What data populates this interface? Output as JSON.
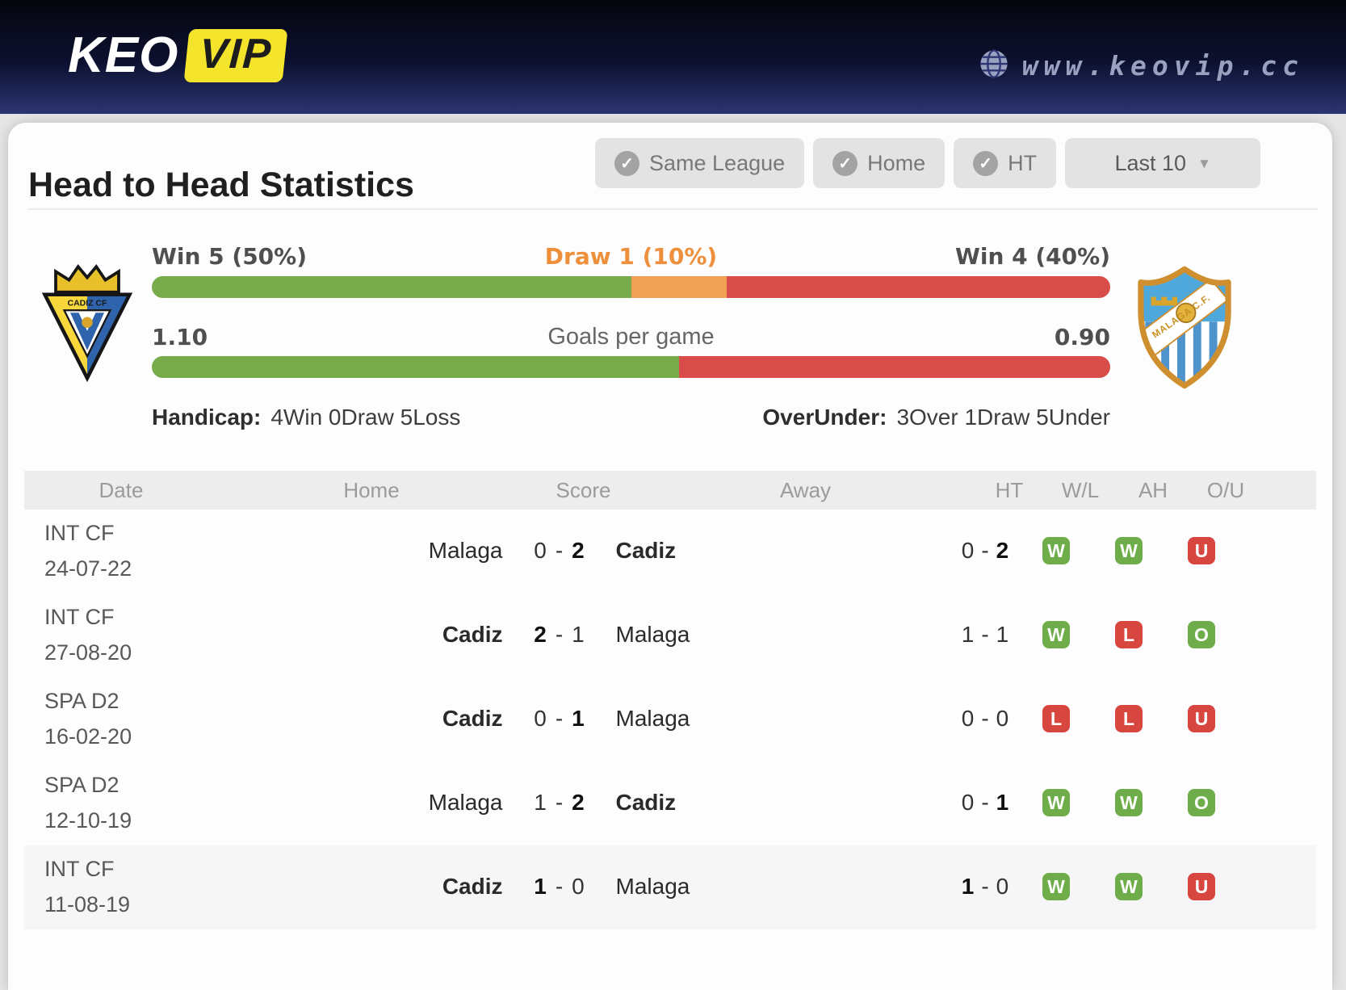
{
  "header": {
    "logo_keo": "KEO",
    "logo_vip": "VIP",
    "website": "www.keovip.cc"
  },
  "page": {
    "title": "Head to Head Statistics",
    "filters": [
      {
        "label": "Same League",
        "checked": true
      },
      {
        "label": "Home",
        "checked": true
      },
      {
        "label": "HT",
        "checked": true
      }
    ],
    "range_selector": {
      "label": "Last 10"
    },
    "check_glyph": "✓",
    "caret_glyph": "▼"
  },
  "teams": {
    "reference_team": "Cadiz",
    "opponent_team": "Malaga"
  },
  "stats": {
    "win_bar": {
      "left_label": "Win 5 (50%)",
      "center_label": "Draw 1 (10%)",
      "right_label": "Win 4 (40%)",
      "segments": [
        {
          "name": "cadiz-win",
          "value": 50,
          "color": "#78ac4b"
        },
        {
          "name": "draw",
          "value": 10,
          "color": "#f0a156"
        },
        {
          "name": "malaga-win",
          "value": 40,
          "color": "#d84d4a"
        }
      ]
    },
    "goals_bar": {
      "left_label": "1.10",
      "center_label": "Goals per game",
      "right_label": "0.90",
      "segments": [
        {
          "name": "cadiz-goals",
          "value": 55,
          "color": "#78ac4b"
        },
        {
          "name": "malaga-goals",
          "value": 45,
          "color": "#d84d4a"
        }
      ]
    },
    "handicap": {
      "label": "Handicap:",
      "value": "4Win 0Draw 5Loss"
    },
    "over_under": {
      "label": "OverUnder:",
      "value": "3Over 1Draw 5Under"
    }
  },
  "table": {
    "headers": [
      "Date",
      "Home",
      "Score",
      "Away",
      "HT",
      "W/L",
      "AH",
      "O/U"
    ],
    "rows": [
      {
        "league": "INT CF",
        "date": "24-07-22",
        "home": {
          "name": "Malaga",
          "bold": false
        },
        "away": {
          "name": "Cadiz",
          "bold": true
        },
        "score": {
          "home": "0",
          "away": "2",
          "home_bold": false,
          "away_bold": true
        },
        "ht": {
          "home": "0",
          "away": "2",
          "home_bold": false,
          "away_bold": true
        },
        "wl": {
          "text": "W",
          "color": "green"
        },
        "ah": {
          "text": "W",
          "color": "green"
        },
        "ou": {
          "text": "U",
          "color": "red"
        }
      },
      {
        "league": "INT CF",
        "date": "27-08-20",
        "home": {
          "name": "Cadiz",
          "bold": true
        },
        "away": {
          "name": "Malaga",
          "bold": false
        },
        "score": {
          "home": "2",
          "away": "1",
          "home_bold": true,
          "away_bold": false
        },
        "ht": {
          "home": "1",
          "away": "1",
          "home_bold": false,
          "away_bold": false
        },
        "wl": {
          "text": "W",
          "color": "green"
        },
        "ah": {
          "text": "L",
          "color": "red"
        },
        "ou": {
          "text": "O",
          "color": "green"
        }
      },
      {
        "league": "SPA D2",
        "date": "16-02-20",
        "home": {
          "name": "Cadiz",
          "bold": true
        },
        "away": {
          "name": "Malaga",
          "bold": false
        },
        "score": {
          "home": "0",
          "away": "1",
          "home_bold": false,
          "away_bold": true
        },
        "ht": {
          "home": "0",
          "away": "0",
          "home_bold": false,
          "away_bold": false
        },
        "wl": {
          "text": "L",
          "color": "red"
        },
        "ah": {
          "text": "L",
          "color": "red"
        },
        "ou": {
          "text": "U",
          "color": "red"
        }
      },
      {
        "league": "SPA D2",
        "date": "12-10-19",
        "home": {
          "name": "Malaga",
          "bold": false
        },
        "away": {
          "name": "Cadiz",
          "bold": true
        },
        "score": {
          "home": "1",
          "away": "2",
          "home_bold": false,
          "away_bold": true
        },
        "ht": {
          "home": "0",
          "away": "1",
          "home_bold": false,
          "away_bold": true
        },
        "wl": {
          "text": "W",
          "color": "green"
        },
        "ah": {
          "text": "W",
          "color": "green"
        },
        "ou": {
          "text": "O",
          "color": "green"
        }
      },
      {
        "league": "INT CF",
        "date": "11-08-19",
        "home": {
          "name": "Cadiz",
          "bold": true
        },
        "away": {
          "name": "Malaga",
          "bold": false
        },
        "score": {
          "home": "1",
          "away": "0",
          "home_bold": true,
          "away_bold": false
        },
        "ht": {
          "home": "1",
          "away": "0",
          "home_bold": true,
          "away_bold": false
        },
        "wl": {
          "text": "W",
          "color": "green"
        },
        "ah": {
          "text": "W",
          "color": "green"
        },
        "ou": {
          "text": "U",
          "color": "red"
        }
      }
    ]
  },
  "colors": {
    "win_green": "#78ac4b",
    "draw_orange": "#f0a156",
    "loss_red": "#d84d4a",
    "badge_green": "#6ead49",
    "badge_red": "#d8473f",
    "logo_yellow": "#f5e42c",
    "header_navy_top": "#05050e",
    "header_navy_bottom": "#2c3572"
  }
}
